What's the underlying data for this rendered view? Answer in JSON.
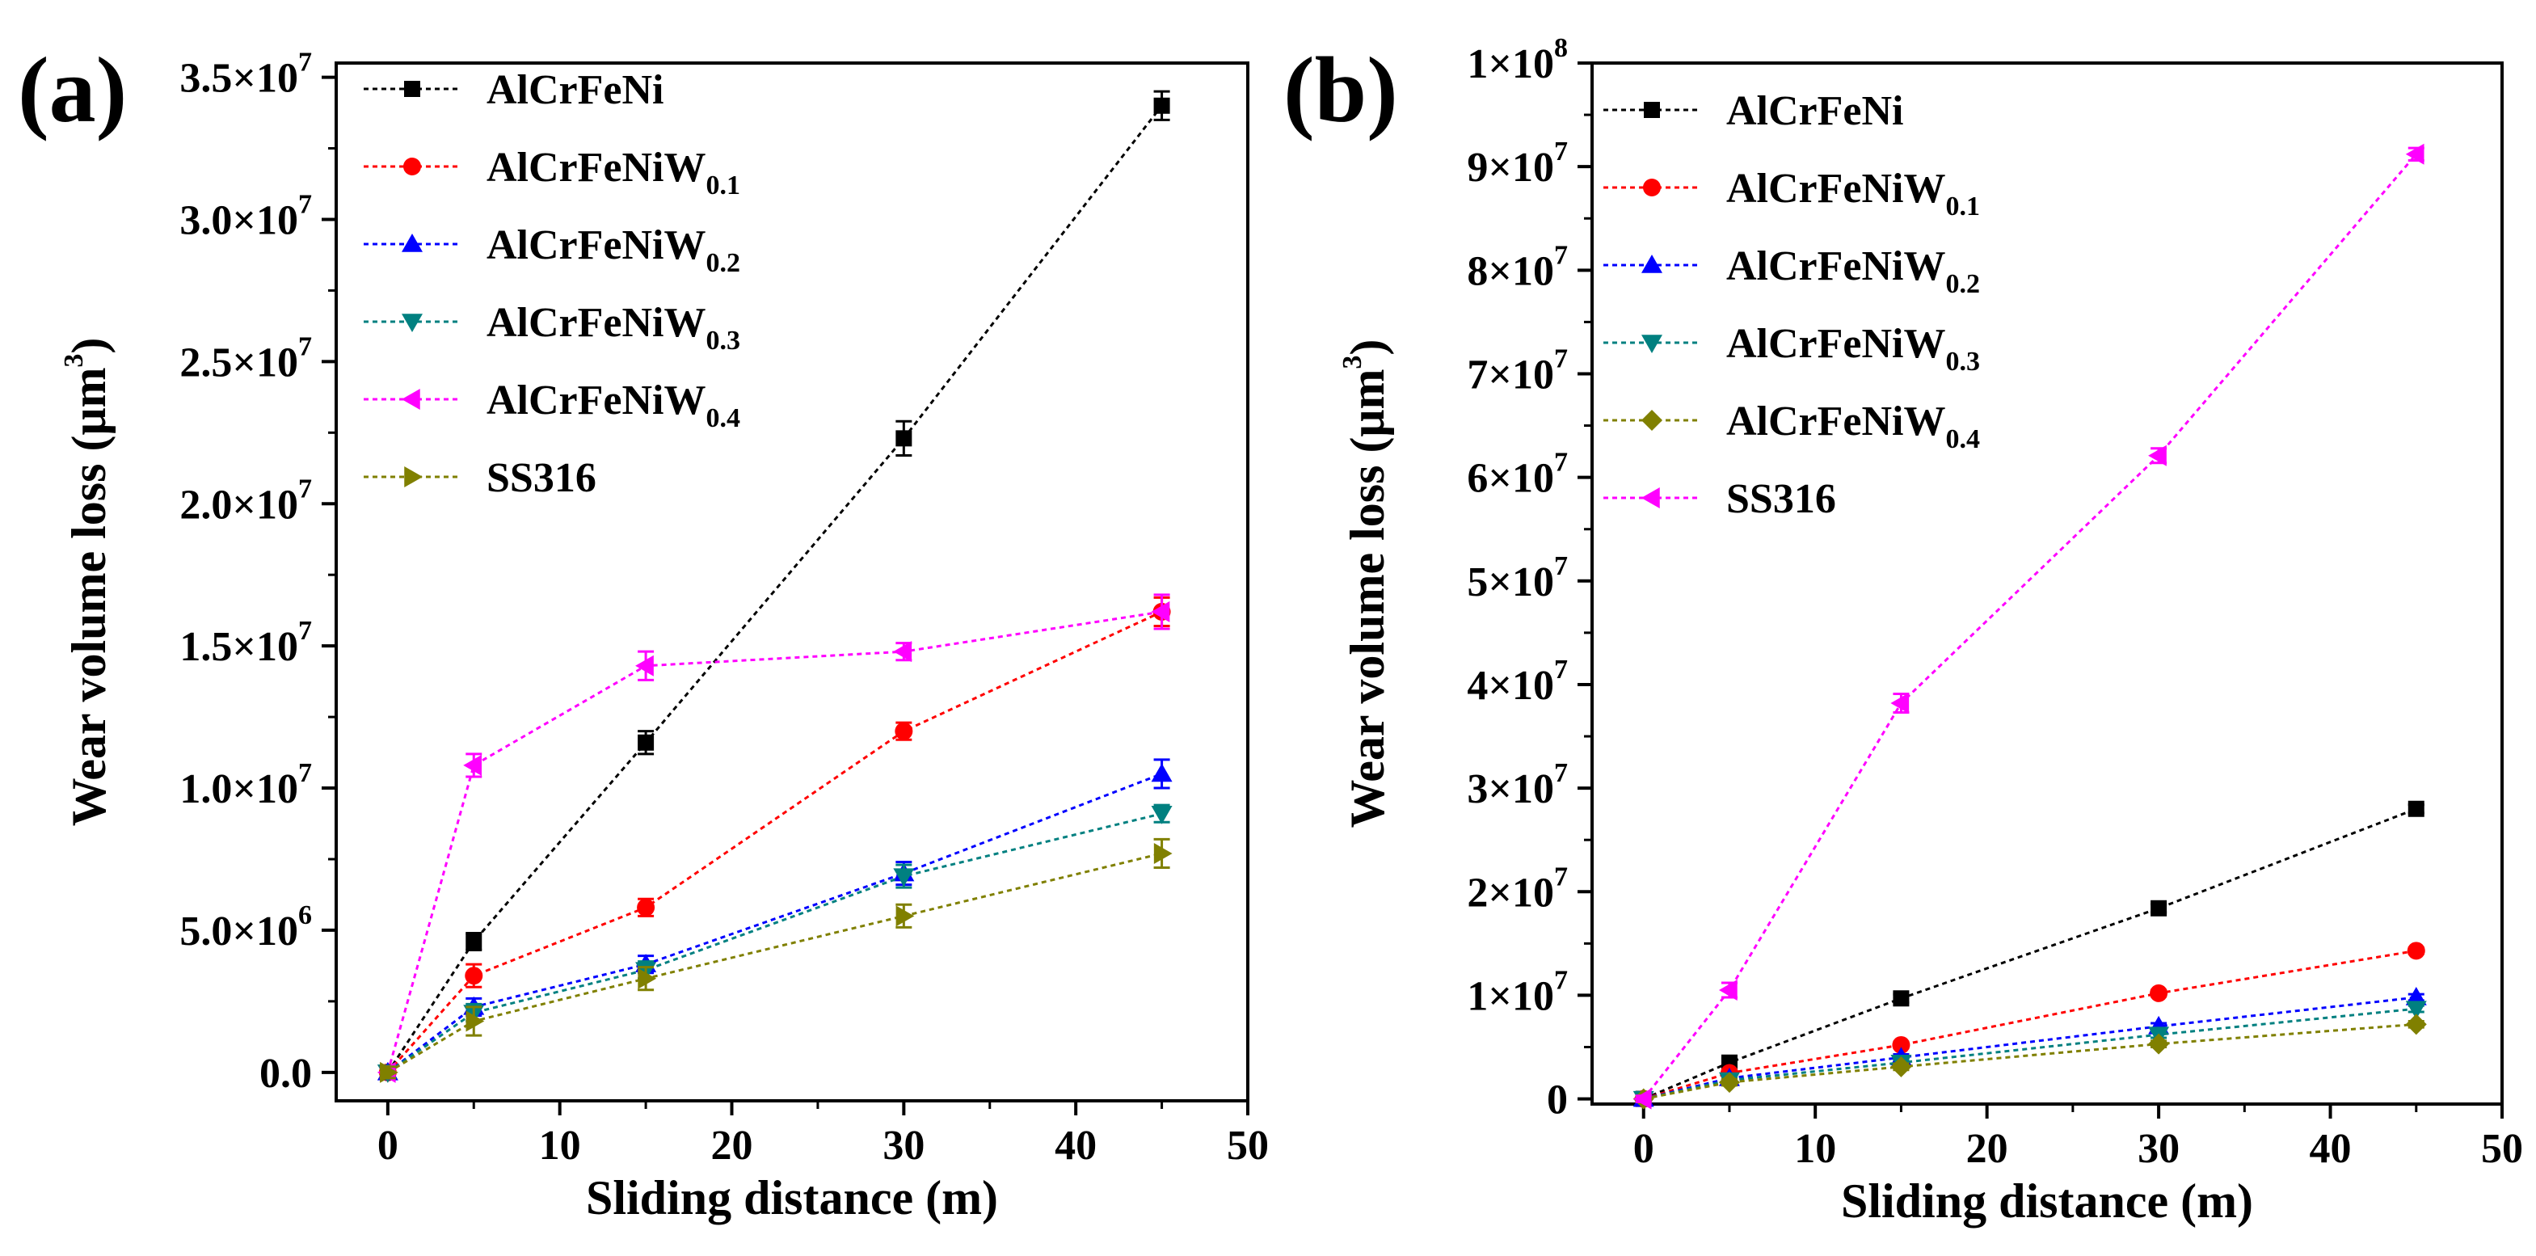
{
  "chart_data": [
    {
      "type": "line",
      "panel_label": "(a)",
      "xlabel": "Sliding distance (m)",
      "ylabel_main": "Wear volume loss (μm",
      "ylabel_sup": "3",
      "ylabel_close": ")",
      "xlim": [
        -3,
        50
      ],
      "ylim": [
        -1000000,
        35500000
      ],
      "xticks": [
        0,
        10,
        20,
        30,
        40,
        50
      ],
      "xtick_labels": [
        "0",
        "10",
        "20",
        "30",
        "40",
        "50"
      ],
      "yticks": [
        0,
        5000000,
        10000000,
        15000000,
        20000000,
        25000000,
        30000000,
        35000000
      ],
      "ytick_mantissa": [
        "0.0",
        "5.0×10",
        "1.0×10",
        "1.5×10",
        "2.0×10",
        "2.5×10",
        "3.0×10",
        "3.5×10"
      ],
      "ytick_exp": [
        "",
        "6",
        "7",
        "7",
        "7",
        "7",
        "7",
        "7"
      ],
      "legend_position": "top-left",
      "x": [
        0,
        5,
        15,
        30,
        45
      ],
      "series": [
        {
          "name_main": "AlCrFeNi",
          "name_sub": "",
          "color": "#000000",
          "marker": "square",
          "values": [
            0,
            4600000,
            11600000,
            22300000,
            34000000
          ],
          "errors": [
            200000,
            300000,
            400000,
            600000,
            500000
          ]
        },
        {
          "name_main": "AlCrFeNiW",
          "name_sub": "0.1",
          "color": "#ff0000",
          "marker": "circle",
          "values": [
            0,
            3400000,
            5800000,
            12000000,
            16200000
          ],
          "errors": [
            200000,
            400000,
            300000,
            300000,
            500000
          ]
        },
        {
          "name_main": "AlCrFeNiW",
          "name_sub": "0.2",
          "color": "#0000ff",
          "marker": "triangle-up",
          "values": [
            0,
            2300000,
            3800000,
            7000000,
            10500000
          ],
          "errors": [
            200000,
            300000,
            300000,
            400000,
            500000
          ]
        },
        {
          "name_main": "AlCrFeNiW",
          "name_sub": "0.3",
          "color": "#008080",
          "marker": "triangle-down",
          "values": [
            0,
            2100000,
            3600000,
            6900000,
            9100000
          ],
          "errors": [
            200000,
            300000,
            300000,
            400000,
            300000
          ]
        },
        {
          "name_main": "AlCrFeNiW",
          "name_sub": "0.4",
          "color": "#ff00ff",
          "marker": "triangle-left",
          "values": [
            0,
            10800000,
            14300000,
            14800000,
            16200000
          ],
          "errors": [
            200000,
            400000,
            500000,
            300000,
            600000
          ]
        },
        {
          "name_main": "SS316",
          "name_sub": "",
          "color": "#808000",
          "marker": "triangle-right",
          "values": [
            0,
            1800000,
            3300000,
            5500000,
            7700000
          ],
          "errors": [
            200000,
            500000,
            400000,
            400000,
            500000
          ]
        }
      ]
    },
    {
      "type": "line",
      "panel_label": "(b)",
      "xlabel": "Sliding distance (m)",
      "ylabel_main": "Wear volume loss (μm",
      "ylabel_sup": "3",
      "ylabel_close": ")",
      "xlim": [
        -3,
        50
      ],
      "ylim": [
        -500000,
        100000000
      ],
      "xticks": [
        0,
        10,
        20,
        30,
        40,
        50
      ],
      "xtick_labels": [
        "0",
        "10",
        "20",
        "30",
        "40",
        "50"
      ],
      "yticks": [
        0,
        10000000,
        20000000,
        30000000,
        40000000,
        50000000,
        60000000,
        70000000,
        80000000,
        90000000,
        100000000
      ],
      "ytick_mantissa": [
        "0",
        "1×10",
        "2×10",
        "3×10",
        "4×10",
        "5×10",
        "6×10",
        "7×10",
        "8×10",
        "9×10",
        "1×10"
      ],
      "ytick_exp": [
        "",
        "7",
        "7",
        "7",
        "7",
        "7",
        "7",
        "7",
        "7",
        "7",
        "8"
      ],
      "legend_position": "top-left",
      "x": [
        0,
        5,
        15,
        30,
        45
      ],
      "series": [
        {
          "name_main": "AlCrFeNi",
          "name_sub": "",
          "color": "#000000",
          "marker": "square",
          "values": [
            0,
            3500000,
            9700000,
            18400000,
            28000000
          ],
          "errors": [
            300000,
            400000,
            400000,
            400000,
            400000
          ]
        },
        {
          "name_main": "AlCrFeNiW",
          "name_sub": "0.1",
          "color": "#ff0000",
          "marker": "circle",
          "values": [
            0,
            2500000,
            5200000,
            10200000,
            14300000
          ],
          "errors": [
            300000,
            300000,
            300000,
            300000,
            300000
          ]
        },
        {
          "name_main": "AlCrFeNiW",
          "name_sub": "0.2",
          "color": "#0000ff",
          "marker": "triangle-up",
          "values": [
            0,
            2000000,
            4000000,
            7000000,
            9800000
          ],
          "errors": [
            300000,
            300000,
            300000,
            300000,
            300000
          ]
        },
        {
          "name_main": "AlCrFeNiW",
          "name_sub": "0.3",
          "color": "#008080",
          "marker": "triangle-down",
          "values": [
            0,
            1800000,
            3500000,
            6200000,
            8700000
          ],
          "errors": [
            300000,
            300000,
            300000,
            300000,
            300000
          ]
        },
        {
          "name_main": "AlCrFeNiW",
          "name_sub": "0.4",
          "color": "#808000",
          "marker": "diamond",
          "values": [
            0,
            1600000,
            3100000,
            5300000,
            7200000
          ],
          "errors": [
            300000,
            300000,
            300000,
            300000,
            300000
          ]
        },
        {
          "name_main": "SS316",
          "name_sub": "",
          "color": "#ff00ff",
          "marker": "triangle-left",
          "values": [
            0,
            10500000,
            38200000,
            62100000,
            91200000
          ],
          "errors": [
            300000,
            700000,
            900000,
            700000,
            600000
          ]
        }
      ]
    }
  ]
}
